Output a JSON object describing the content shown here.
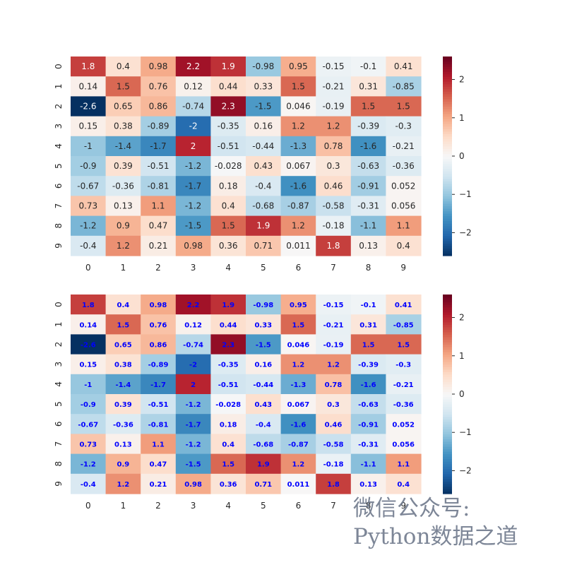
{
  "chart_data": [
    {
      "type": "heatmap",
      "panel": "top",
      "x_tick_labels": [
        "0",
        "1",
        "2",
        "3",
        "4",
        "5",
        "6",
        "7",
        "8",
        "9"
      ],
      "y_tick_labels": [
        "0",
        "1",
        "2",
        "3",
        "4",
        "5",
        "6",
        "7",
        "8",
        "9"
      ],
      "values": [
        [
          1.8,
          0.4,
          0.98,
          2.2,
          1.9,
          -0.98,
          0.95,
          -0.15,
          -0.1,
          0.41
        ],
        [
          0.14,
          1.5,
          0.76,
          0.12,
          0.44,
          0.33,
          1.5,
          -0.21,
          0.31,
          -0.85
        ],
        [
          -2.6,
          0.65,
          0.86,
          -0.74,
          2.3,
          -1.5,
          0.046,
          -0.19,
          1.5,
          1.5
        ],
        [
          0.15,
          0.38,
          -0.89,
          -2,
          -0.35,
          0.16,
          1.2,
          1.2,
          -0.39,
          -0.3
        ],
        [
          -1,
          -1.4,
          -1.7,
          2,
          -0.51,
          -0.44,
          -1.3,
          0.78,
          -1.6,
          -0.21
        ],
        [
          -0.9,
          0.39,
          -0.51,
          -1.2,
          -0.028,
          0.43,
          0.067,
          0.3,
          -0.63,
          -0.36
        ],
        [
          -0.67,
          -0.36,
          -0.81,
          -1.7,
          0.18,
          -0.4,
          -1.6,
          0.46,
          -0.91,
          0.052
        ],
        [
          0.73,
          0.13,
          1.1,
          -1.2,
          0.4,
          -0.68,
          -0.87,
          -0.58,
          -0.31,
          0.056
        ],
        [
          -1.2,
          0.9,
          0.47,
          -1.5,
          1.5,
          1.9,
          1.2,
          -0.18,
          -1.1,
          1.1
        ],
        [
          -0.4,
          1.2,
          0.21,
          0.98,
          0.36,
          0.71,
          0.011,
          1.8,
          0.13,
          0.4
        ]
      ],
      "annotations": [
        [
          "1.8",
          "0.4",
          "0.98",
          "2.2",
          "1.9",
          "-0.98",
          "0.95",
          "-0.15",
          "-0.1",
          "0.41"
        ],
        [
          "0.14",
          "1.5",
          "0.76",
          "0.12",
          "0.44",
          "0.33",
          "1.5",
          "-0.21",
          "0.31",
          "-0.85"
        ],
        [
          "-2.6",
          "0.65",
          "0.86",
          "-0.74",
          "2.3",
          "-1.5",
          "0.046",
          "-0.19",
          "1.5",
          "1.5"
        ],
        [
          "0.15",
          "0.38",
          "-0.89",
          "-2",
          "-0.35",
          "0.16",
          "1.2",
          "1.2",
          "-0.39",
          "-0.3"
        ],
        [
          "-1",
          "-1.4",
          "-1.7",
          "2",
          "-0.51",
          "-0.44",
          "-1.3",
          "0.78",
          "-1.6",
          "-0.21"
        ],
        [
          "-0.9",
          "0.39",
          "-0.51",
          "-1.2",
          "-0.028",
          "0.43",
          "0.067",
          "0.3",
          "-0.63",
          "-0.36"
        ],
        [
          "-0.67",
          "-0.36",
          "-0.81",
          "-1.7",
          "0.18",
          "-0.4",
          "-1.6",
          "0.46",
          "-0.91",
          "0.052"
        ],
        [
          "0.73",
          "0.13",
          "1.1",
          "-1.2",
          "0.4",
          "-0.68",
          "-0.87",
          "-0.58",
          "-0.31",
          "0.056"
        ],
        [
          "-1.2",
          "0.9",
          "0.47",
          "-1.5",
          "1.5",
          "1.9",
          "1.2",
          "-0.18",
          "-1.1",
          "1.1"
        ],
        [
          "-0.4",
          "1.2",
          "0.21",
          "0.98",
          "0.36",
          "0.71",
          "0.011",
          "1.8",
          "0.13",
          "0.4"
        ]
      ],
      "colormap": "RdBu_r",
      "vmin": -2.6,
      "vmax": 2.6,
      "colorbar_ticks": [
        -2,
        -1,
        0,
        1,
        2
      ],
      "colorbar_tick_labels": [
        "−2",
        "−1",
        "0",
        "1",
        "2"
      ],
      "annotation_style": "auto black/white"
    },
    {
      "type": "heatmap",
      "panel": "bottom",
      "x_tick_labels": [
        "0",
        "1",
        "2",
        "3",
        "4",
        "5",
        "6",
        "7",
        "8",
        "9"
      ],
      "y_tick_labels": [
        "0",
        "1",
        "2",
        "3",
        "4",
        "5",
        "6",
        "7",
        "8",
        "9"
      ],
      "values": [
        [
          1.8,
          0.4,
          0.98,
          2.2,
          1.9,
          -0.98,
          0.95,
          -0.15,
          -0.1,
          0.41
        ],
        [
          0.14,
          1.5,
          0.76,
          0.12,
          0.44,
          0.33,
          1.5,
          -0.21,
          0.31,
          -0.85
        ],
        [
          -2.6,
          0.65,
          0.86,
          -0.74,
          2.3,
          -1.5,
          0.046,
          -0.19,
          1.5,
          1.5
        ],
        [
          0.15,
          0.38,
          -0.89,
          -2,
          -0.35,
          0.16,
          1.2,
          1.2,
          -0.39,
          -0.3
        ],
        [
          -1,
          -1.4,
          -1.7,
          2,
          -0.51,
          -0.44,
          -1.3,
          0.78,
          -1.6,
          -0.21
        ],
        [
          -0.9,
          0.39,
          -0.51,
          -1.2,
          -0.028,
          0.43,
          0.067,
          0.3,
          -0.63,
          -0.36
        ],
        [
          -0.67,
          -0.36,
          -0.81,
          -1.7,
          0.18,
          -0.4,
          -1.6,
          0.46,
          -0.91,
          0.052
        ],
        [
          0.73,
          0.13,
          1.1,
          -1.2,
          0.4,
          -0.68,
          -0.87,
          -0.58,
          -0.31,
          0.056
        ],
        [
          -1.2,
          0.9,
          0.47,
          -1.5,
          1.5,
          1.9,
          1.2,
          -0.18,
          -1.1,
          1.1
        ],
        [
          -0.4,
          1.2,
          0.21,
          0.98,
          0.36,
          0.71,
          0.011,
          1.8,
          0.13,
          0.4
        ]
      ],
      "annotations": [
        [
          "1.8",
          "0.4",
          "0.98",
          "2.2",
          "1.9",
          "-0.98",
          "0.95",
          "-0.15",
          "-0.1",
          "0.41"
        ],
        [
          "0.14",
          "1.5",
          "0.76",
          "0.12",
          "0.44",
          "0.33",
          "1.5",
          "-0.21",
          "0.31",
          "-0.85"
        ],
        [
          "-2.6",
          "0.65",
          "0.86",
          "-0.74",
          "2.3",
          "-1.5",
          "0.046",
          "-0.19",
          "1.5",
          "1.5"
        ],
        [
          "0.15",
          "0.38",
          "-0.89",
          "-2",
          "-0.35",
          "0.16",
          "1.2",
          "1.2",
          "-0.39",
          "-0.3"
        ],
        [
          "-1",
          "-1.4",
          "-1.7",
          "2",
          "-0.51",
          "-0.44",
          "-1.3",
          "0.78",
          "-1.6",
          "-0.21"
        ],
        [
          "-0.9",
          "0.39",
          "-0.51",
          "-1.2",
          "-0.028",
          "0.43",
          "0.067",
          "0.3",
          "-0.63",
          "-0.36"
        ],
        [
          "-0.67",
          "-0.36",
          "-0.81",
          "-1.7",
          "0.18",
          "-0.4",
          "-1.6",
          "0.46",
          "-0.91",
          "0.052"
        ],
        [
          "0.73",
          "0.13",
          "1.1",
          "-1.2",
          "0.4",
          "-0.68",
          "-0.87",
          "-0.58",
          "-0.31",
          "0.056"
        ],
        [
          "-1.2",
          "0.9",
          "0.47",
          "-1.5",
          "1.5",
          "1.9",
          "1.2",
          "-0.18",
          "-1.1",
          "1.1"
        ],
        [
          "-0.4",
          "1.2",
          "0.21",
          "0.98",
          "0.36",
          "0.71",
          "0.011",
          "1.8",
          "0.13",
          "0.4"
        ]
      ],
      "colormap": "RdBu_r",
      "vmin": -2.6,
      "vmax": 2.6,
      "colorbar_ticks": [
        -2,
        -1,
        0,
        1,
        2
      ],
      "colorbar_tick_labels": [
        "−2",
        "−1",
        "0",
        "1",
        "2"
      ],
      "annotation_style": "bold blue",
      "annotation_color": "#0000ff"
    }
  ],
  "colormap_stops": [
    "#053061",
    "#2166ac",
    "#4393c3",
    "#92c5de",
    "#d1e5f0",
    "#f7f7f7",
    "#fddbc7",
    "#f4a582",
    "#d6604d",
    "#b2182b",
    "#67001f"
  ],
  "watermark": {
    "line1": "微信公众号:",
    "line2": "Python数据之道"
  }
}
